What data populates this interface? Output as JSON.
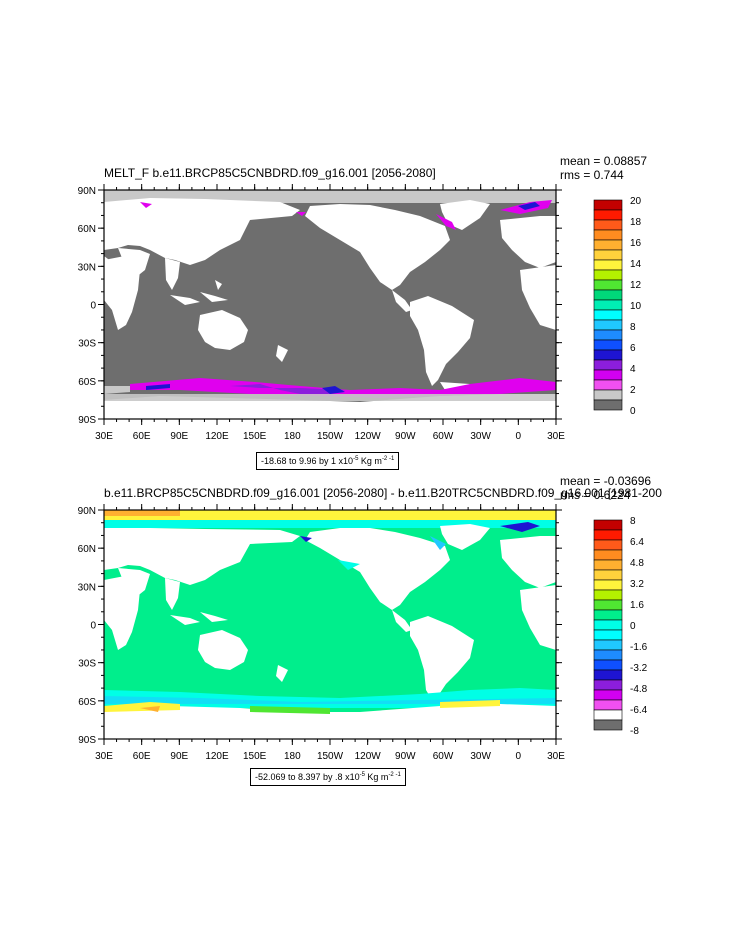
{
  "panels": [
    {
      "title": "MELT_F b.e11.BRCP85C5CNBDRD.f09_g16.001 [2056-2080]",
      "mean_text": "mean = 0.08857",
      "rms_text": "rms = 0.744",
      "range_prefix": "-18.68 to 9.96 by 1 x10",
      "range_exp": "-5",
      "range_units": " Kg m",
      "range_units_exp": "-2",
      "range_units_exp2": "-1",
      "colorbar_labels": [
        "20",
        "18",
        "16",
        "14",
        "12",
        "10",
        "8",
        "6",
        "4",
        "2",
        "0"
      ],
      "colorbar_colors": [
        "#c40000",
        "#ff1a00",
        "#ff5a1a",
        "#ff8c20",
        "#ffb030",
        "#ffd23c",
        "#fff43c",
        "#b4f000",
        "#50e632",
        "#00d87a",
        "#00eeb4",
        "#00ffff",
        "#20c8ff",
        "#1e8cff",
        "#0f50ff",
        "#1e14d2",
        "#8c1edc",
        "#d200f0",
        "#f050f0",
        "#c8c8c8",
        "#6e6e6e"
      ]
    },
    {
      "title": "b.e11.BRCP85C5CNBDRD.f09_g16.001 [2056-2080] - b.e11.B20TRC5CNBDRD.f09_g16.001 [1981-200",
      "mean_text": "mean = -0.03696",
      "rms_text": "rms = 0.6224",
      "range_prefix": "-52.069 to 8.397 by .8 x10",
      "range_exp": "-5",
      "range_units": " Kg m",
      "range_units_exp": "-2",
      "range_units_exp2": "-1",
      "colorbar_labels": [
        "8",
        "6.4",
        "4.8",
        "3.2",
        "1.6",
        "0",
        "-1.6",
        "-3.2",
        "-4.8",
        "-6.4",
        "-8"
      ],
      "colorbar_colors": [
        "#c40000",
        "#ff1a00",
        "#ff5a1a",
        "#ff8c20",
        "#ffb030",
        "#ffd23c",
        "#fff43c",
        "#b4f000",
        "#50e632",
        "#00ee8c",
        "#00ffe6",
        "#00ffff",
        "#20c8ff",
        "#1e8cff",
        "#0f50ff",
        "#1e14d2",
        "#8c1edc",
        "#d200f0",
        "#f050f0",
        "#ffffff",
        "#6e6e6e"
      ]
    }
  ],
  "axes": {
    "lon_labels": [
      "30E",
      "60E",
      "90E",
      "120E",
      "150E",
      "180",
      "150W",
      "120W",
      "90W",
      "60W",
      "30W",
      "0",
      "30E"
    ],
    "lat_labels": [
      "90N",
      "60N",
      "30N",
      "0",
      "30S",
      "60S",
      "90S"
    ]
  },
  "colors": {
    "ocean_top": "#6e6e6e",
    "ocean_bottom": "#00ee8c",
    "land": "#ffffff",
    "ice_top": "#c8c8c8",
    "melt_magenta": "#e000ee",
    "melt_purple": "#8c1edc",
    "melt_blue": "#1e14d2",
    "diff_cyan": "#00ffe6",
    "diff_yellow": "#fff43c",
    "diff_orange": "#ffb030",
    "diff_skyblue": "#20c8ff"
  }
}
